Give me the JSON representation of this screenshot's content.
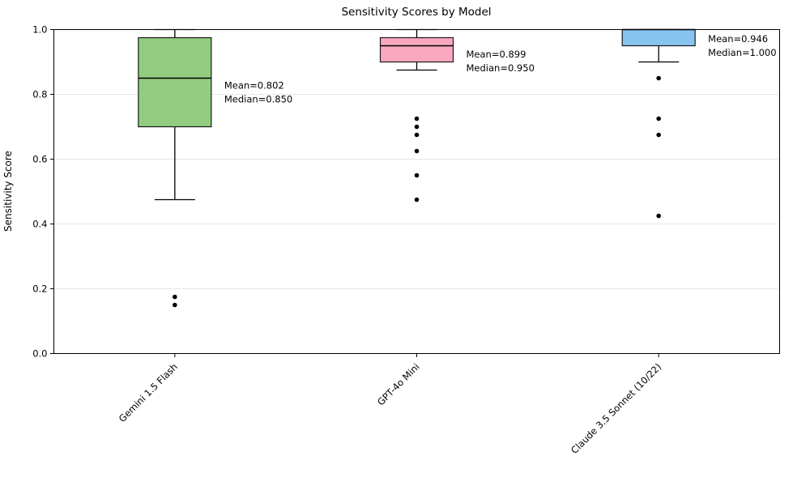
{
  "chart_data": {
    "type": "box",
    "title": "Sensitivity Scores by Model",
    "xlabel": "",
    "ylabel": "Sensitivity Score",
    "ylim": [
      0.0,
      1.0
    ],
    "ytick_labels": [
      "0.0",
      "0.2",
      "0.4",
      "0.6",
      "0.8",
      "1.0"
    ],
    "ytick_values": [
      0.0,
      0.2,
      0.4,
      0.6,
      0.8,
      1.0
    ],
    "grid": "horizontal-light",
    "legend_position": "none",
    "categories": [
      "Gemini 1.5 Flash",
      "GPT-4o Mini",
      "Claude 3.5 Sonnet (10/22)"
    ],
    "series": [
      {
        "name": "Gemini 1.5 Flash",
        "slug": "gemini-1-5-flash",
        "box_color": "#92cd7f",
        "edge_color": "#1a1a1a",
        "whisker_low": 0.475,
        "q1": 0.7,
        "median": 0.85,
        "q3": 0.975,
        "whisker_high": 1.0,
        "outliers": [
          0.175,
          0.15
        ],
        "mean": 0.802,
        "annotation_line1": "Mean=0.802",
        "annotation_line2": "Median=0.850"
      },
      {
        "name": "GPT-4o Mini",
        "slug": "gpt-4o-mini",
        "box_color": "#f9a8c0",
        "edge_color": "#1a1a1a",
        "whisker_low": 0.875,
        "q1": 0.9,
        "median": 0.95,
        "q3": 0.975,
        "whisker_high": 1.0,
        "outliers": [
          0.725,
          0.7,
          0.675,
          0.625,
          0.55,
          0.475
        ],
        "mean": 0.899,
        "annotation_line1": "Mean=0.899",
        "annotation_line2": "Median=0.950"
      },
      {
        "name": "Claude 3.5 Sonnet (10/22)",
        "slug": "claude-3-5-sonnet-10-22",
        "box_color": "#87c3ee",
        "edge_color": "#1a1a1a",
        "whisker_low": 0.9,
        "q1": 0.95,
        "median": 1.0,
        "q3": 1.0,
        "whisker_high": 1.0,
        "outliers": [
          0.85,
          0.725,
          0.675,
          0.425
        ],
        "mean": 0.946,
        "annotation_line1": "Mean=0.946",
        "annotation_line2": "Median=1.000"
      }
    ],
    "colors": {
      "spine": "#000000",
      "gridline": "#e6e6e6",
      "outlier": "#000000",
      "text": "#000000"
    }
  }
}
